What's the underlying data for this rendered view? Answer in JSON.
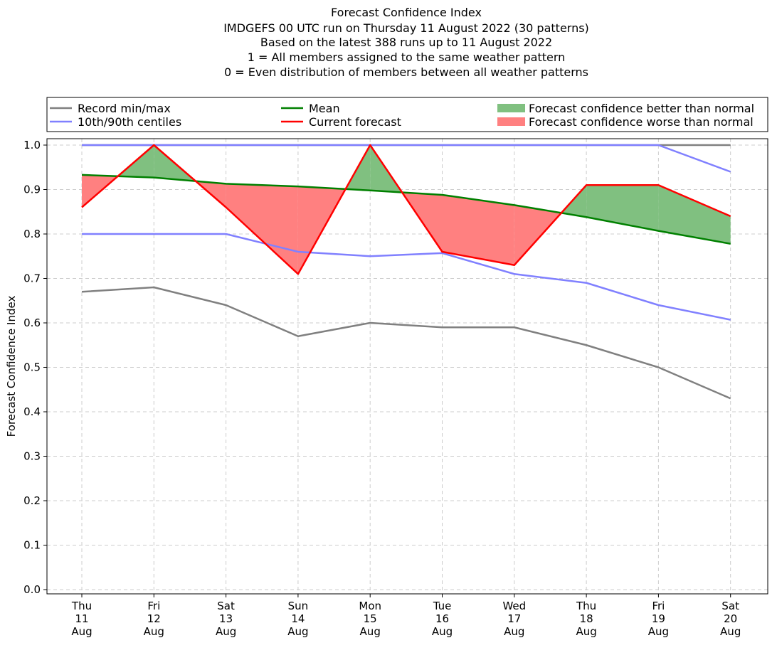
{
  "chart_data": {
    "type": "line",
    "title_lines": [
      "Forecast Confidence Index",
      "IMDGEFS 00 UTC run on Thursday 11 August 2022 (30 patterns)",
      "Based on the latest 388 runs up to 11 August 2022",
      "1 = All members assigned to the same weather pattern",
      "0 = Even distribution of members between all weather patterns"
    ],
    "ylabel": "Forecast Confidence Index",
    "xlabel": "",
    "ylim": [
      0,
      1
    ],
    "yticks": [
      "0.0",
      "0.1",
      "0.2",
      "0.3",
      "0.4",
      "0.5",
      "0.6",
      "0.7",
      "0.8",
      "0.9",
      "1.0"
    ],
    "categories": [
      {
        "day": "Thu",
        "date": "11",
        "month": "Aug"
      },
      {
        "day": "Fri",
        "date": "12",
        "month": "Aug"
      },
      {
        "day": "Sat",
        "date": "13",
        "month": "Aug"
      },
      {
        "day": "Sun",
        "date": "14",
        "month": "Aug"
      },
      {
        "day": "Mon",
        "date": "15",
        "month": "Aug"
      },
      {
        "day": "Tue",
        "date": "16",
        "month": "Aug"
      },
      {
        "day": "Wed",
        "date": "17",
        "month": "Aug"
      },
      {
        "day": "Thu",
        "date": "18",
        "month": "Aug"
      },
      {
        "day": "Fri",
        "date": "19",
        "month": "Aug"
      },
      {
        "day": "Sat",
        "date": "20",
        "month": "Aug"
      }
    ],
    "grid": true,
    "legend_placement": "top, above plot",
    "legend": [
      {
        "label": "Record min/max",
        "kind": "line",
        "color": "#808080"
      },
      {
        "label": "10th/90th centiles",
        "kind": "line",
        "color": "#8080ff"
      },
      {
        "label": "Mean",
        "kind": "line",
        "color": "#008000"
      },
      {
        "label": "Current forecast",
        "kind": "line",
        "color": "#ff0000"
      },
      {
        "label": "Forecast confidence better than normal",
        "kind": "patch",
        "color": "#80c080"
      },
      {
        "label": "Forecast confidence worse than normal",
        "kind": "patch",
        "color": "#ff8080"
      }
    ],
    "series": {
      "record_min": [
        0.67,
        0.68,
        0.64,
        0.57,
        0.6,
        0.59,
        0.59,
        0.55,
        0.5,
        0.43
      ],
      "record_max": [
        1.0,
        1.0,
        1.0,
        1.0,
        1.0,
        1.0,
        1.0,
        1.0,
        1.0,
        1.0
      ],
      "centile_10": [
        0.8,
        0.8,
        0.8,
        0.76,
        0.75,
        0.757,
        0.71,
        0.69,
        0.64,
        0.607
      ],
      "centile_90": [
        1.0,
        1.0,
        1.0,
        1.0,
        1.0,
        1.0,
        1.0,
        1.0,
        1.0,
        0.94
      ],
      "mean": [
        0.933,
        0.927,
        0.913,
        0.907,
        0.898,
        0.888,
        0.865,
        0.838,
        0.807,
        0.778
      ],
      "current": [
        0.86,
        1.0,
        0.86,
        0.71,
        1.0,
        0.76,
        0.73,
        0.91,
        0.91,
        0.84
      ]
    },
    "colors": {
      "record": "#808080",
      "centile": "#8080ff",
      "mean": "#008000",
      "current": "#ff0000",
      "better": "#80c080",
      "worse": "#ff8080"
    }
  }
}
